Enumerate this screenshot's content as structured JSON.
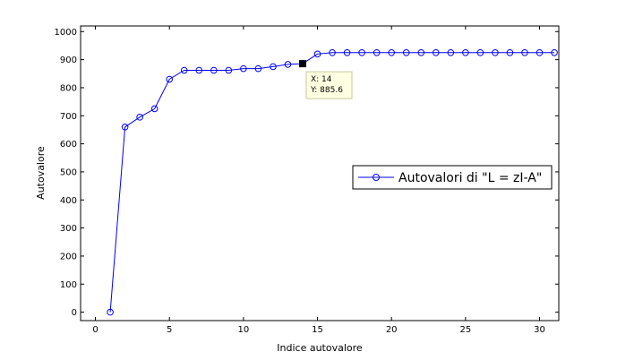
{
  "chart_data": {
    "type": "line",
    "title": "",
    "xlabel": "Indice autovalore",
    "ylabel": "Autovalore",
    "xlim": [
      -1,
      31.3
    ],
    "ylim": [
      -30,
      1020
    ],
    "xticks": [
      0,
      5,
      10,
      15,
      20,
      25,
      30
    ],
    "yticks": [
      0,
      100,
      200,
      300,
      400,
      500,
      600,
      700,
      800,
      900,
      1000
    ],
    "grid": false,
    "legend_position": "right",
    "series": [
      {
        "name": "Autovalori di \"L = zI-A\"",
        "color": "#0000ff",
        "marker": "circle",
        "x": [
          1,
          2,
          3,
          4,
          5,
          6,
          7,
          8,
          9,
          10,
          11,
          12,
          13,
          14,
          15,
          16,
          17,
          18,
          19,
          20,
          21,
          22,
          23,
          24,
          25,
          26,
          27,
          28,
          29,
          30,
          31
        ],
        "values": [
          0,
          660,
          695,
          725,
          830,
          862,
          862,
          862,
          862,
          868,
          868,
          875,
          883,
          885.6,
          920,
          925,
          925,
          925,
          925,
          925,
          925,
          925,
          925,
          925,
          925,
          925,
          925,
          925,
          925,
          925,
          925
        ]
      }
    ],
    "datatip": {
      "x": 14,
      "y": 885.6,
      "line1": "X: 14",
      "line2": "Y: 885.6"
    }
  }
}
